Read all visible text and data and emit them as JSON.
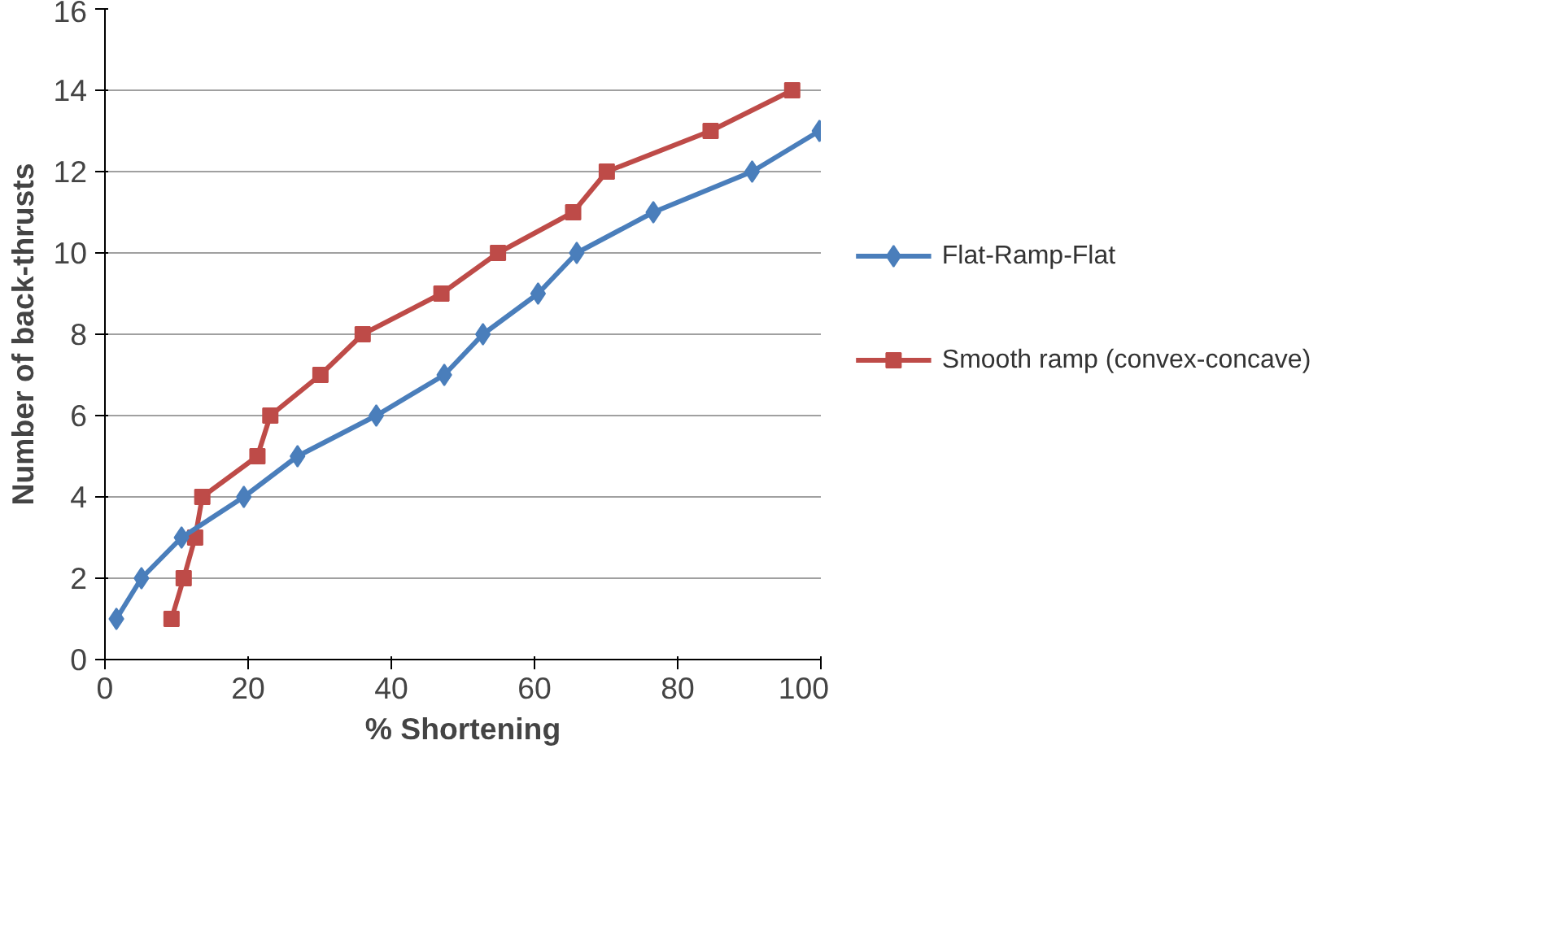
{
  "chart_data": {
    "type": "line",
    "xlabel": "% Shortening",
    "ylabel": "Number of back-thrusts",
    "xlim": [
      0,
      100
    ],
    "xticks": [
      0,
      20,
      40,
      60,
      80,
      100
    ],
    "ylim": [
      0,
      16
    ],
    "yticks": [
      0,
      2,
      4,
      6,
      8,
      10,
      12,
      14,
      16
    ],
    "grid": "y",
    "legend": "right",
    "line_style": "solid",
    "series": [
      {
        "name": "Flat-Ramp-Flat",
        "color": "#4a7ebb",
        "marker": "diamond",
        "x": [
          1.6,
          5.1,
          10.7,
          19.4,
          26.9,
          37.9,
          47.4,
          52.8,
          60.5,
          65.9,
          76.6,
          90.4,
          99.8
        ],
        "values": [
          1,
          2,
          3,
          4,
          5,
          6,
          7,
          8,
          9,
          10,
          11,
          12,
          13
        ]
      },
      {
        "name": "Smooth ramp (convex-concave)",
        "color": "#be4b48",
        "marker": "square",
        "x": [
          9.3,
          11,
          12.6,
          13.6,
          21.3,
          23.1,
          30.1,
          36,
          47,
          54.9,
          65.4,
          70.1,
          84.6,
          96
        ],
        "values": [
          1,
          2,
          3,
          4,
          5,
          6,
          7,
          8,
          9,
          10,
          11,
          12,
          13,
          14
        ]
      }
    ]
  }
}
